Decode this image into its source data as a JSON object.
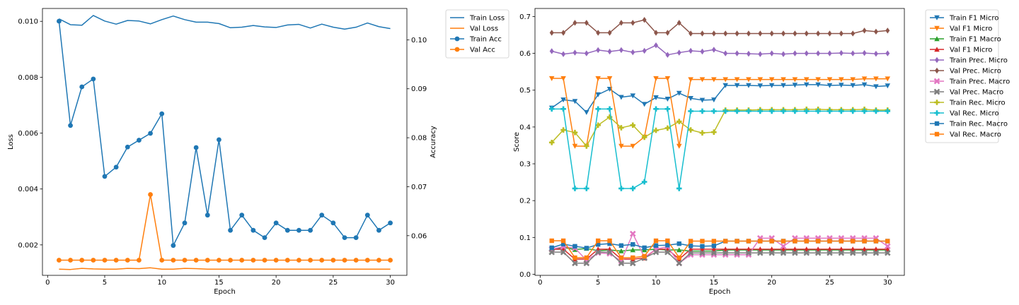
{
  "chart_data": [
    {
      "type": "line",
      "title": "",
      "xlabel": "Epoch",
      "ylabel": "Loss",
      "y2label": "Accuracy",
      "xlim": [
        -0.45,
        31.45
      ],
      "ylim": [
        0.00091,
        0.01046
      ],
      "y2lim": [
        0.0519,
        0.1064
      ],
      "xticks": [
        0,
        5,
        10,
        15,
        20,
        25,
        30
      ],
      "yticks": [
        0.002,
        0.004,
        0.006,
        0.008,
        0.01
      ],
      "ytick_labels": [
        "0.002",
        "0.004",
        "0.006",
        "0.008",
        "0.010"
      ],
      "y2ticks": [
        0.06,
        0.07,
        0.08,
        0.09,
        0.1
      ],
      "y2tick_labels": [
        "0.06",
        "0.07",
        "0.08",
        "0.09",
        "0.10"
      ],
      "legend_position": "upper-right-outside",
      "x": [
        1,
        2,
        3,
        4,
        5,
        6,
        7,
        8,
        9,
        10,
        11,
        12,
        13,
        14,
        15,
        16,
        17,
        18,
        19,
        20,
        21,
        22,
        23,
        24,
        25,
        26,
        27,
        28,
        29,
        30
      ],
      "series": [
        {
          "name": "Train Loss",
          "axis": "left",
          "color": "#1f77b4",
          "marker": "none",
          "values": [
            0.01009,
            0.00988,
            0.00986,
            0.01021,
            0.01001,
            0.0099,
            0.01003,
            0.01001,
            0.00991,
            0.01006,
            0.01019,
            0.01006,
            0.00997,
            0.00997,
            0.00992,
            0.00977,
            0.00979,
            0.00985,
            0.0098,
            0.00978,
            0.00987,
            0.00989,
            0.00976,
            0.0099,
            0.00979,
            0.00972,
            0.00979,
            0.00994,
            0.00981,
            0.00974
          ]
        },
        {
          "name": "Val Loss",
          "axis": "left",
          "color": "#ff7f0e",
          "marker": "none",
          "values": [
            0.00113,
            0.00112,
            0.00116,
            0.00114,
            0.00113,
            0.00113,
            0.00116,
            0.00115,
            0.00118,
            0.00113,
            0.00113,
            0.00116,
            0.00115,
            0.00113,
            0.00113,
            0.00113,
            0.00113,
            0.00113,
            0.00113,
            0.00113,
            0.00113,
            0.00113,
            0.00113,
            0.00113,
            0.00113,
            0.00113,
            0.00113,
            0.00113,
            0.00113,
            0.00113
          ]
        },
        {
          "name": "Train Acc",
          "axis": "right",
          "color": "#1f77b4",
          "marker": "circle",
          "values": [
            0.1038,
            0.0825,
            0.0904,
            0.092,
            0.0721,
            0.074,
            0.0781,
            0.0795,
            0.0809,
            0.0849,
            0.058,
            0.0626,
            0.078,
            0.0642,
            0.0796,
            0.0611,
            0.0642,
            0.0611,
            0.0596,
            0.0626,
            0.0611,
            0.0611,
            0.0611,
            0.0642,
            0.0626,
            0.0596,
            0.0596,
            0.0642,
            0.0611,
            0.0626
          ]
        },
        {
          "name": "Val Acc",
          "axis": "right",
          "color": "#ff7f0e",
          "marker": "circle",
          "values": [
            0.055,
            0.055,
            0.055,
            0.055,
            0.055,
            0.055,
            0.055,
            0.055,
            0.0684,
            0.055,
            0.055,
            0.055,
            0.055,
            0.055,
            0.055,
            0.055,
            0.055,
            0.055,
            0.055,
            0.055,
            0.055,
            0.055,
            0.055,
            0.055,
            0.055,
            0.055,
            0.055,
            0.055,
            0.055,
            0.055
          ]
        }
      ]
    },
    {
      "type": "line",
      "title": "",
      "xlabel": "Epoch",
      "ylabel": "Score",
      "xlim": [
        -0.45,
        31.45
      ],
      "ylim": [
        -0.003,
        0.722
      ],
      "xticks": [
        0,
        5,
        10,
        15,
        20,
        25,
        30
      ],
      "yticks": [
        0.0,
        0.1,
        0.2,
        0.3,
        0.4,
        0.5,
        0.6,
        0.7
      ],
      "ytick_labels": [
        "0.0",
        "0.1",
        "0.2",
        "0.3",
        "0.4",
        "0.5",
        "0.6",
        "0.7"
      ],
      "legend_position": "upper-right-outside",
      "x": [
        1,
        2,
        3,
        4,
        5,
        6,
        7,
        8,
        9,
        10,
        11,
        12,
        13,
        14,
        15,
        16,
        17,
        18,
        19,
        20,
        21,
        22,
        23,
        24,
        25,
        26,
        27,
        28,
        29,
        30
      ],
      "series": [
        {
          "name": "Train F1 Micro",
          "color": "#1f77b4",
          "marker": "tri_down",
          "values": [
            0.452,
            0.474,
            0.47,
            0.44,
            0.488,
            0.503,
            0.481,
            0.485,
            0.462,
            0.48,
            0.476,
            0.492,
            0.478,
            0.473,
            0.474,
            0.513,
            0.513,
            0.513,
            0.512,
            0.513,
            0.513,
            0.514,
            0.515,
            0.515,
            0.513,
            0.514,
            0.513,
            0.515,
            0.51,
            0.512
          ]
        },
        {
          "name": "Val F1 Micro",
          "color": "#ff7f0e",
          "marker": "tri_down",
          "values": [
            0.532,
            0.532,
            0.348,
            0.348,
            0.532,
            0.532,
            0.348,
            0.348,
            0.373,
            0.532,
            0.532,
            0.348,
            0.529,
            0.529,
            0.529,
            0.529,
            0.529,
            0.529,
            0.529,
            0.529,
            0.529,
            0.529,
            0.529,
            0.529,
            0.529,
            0.529,
            0.529,
            0.531,
            0.531,
            0.531
          ]
        },
        {
          "name": "Train F1 Macro",
          "color": "#2ca02c",
          "marker": "tri_up",
          "values": [
            0.066,
            0.073,
            0.067,
            0.07,
            0.064,
            0.066,
            0.063,
            0.066,
            0.066,
            0.068,
            0.066,
            0.066,
            0.063,
            0.063,
            0.063,
            0.066,
            0.066,
            0.066,
            0.066,
            0.066,
            0.066,
            0.066,
            0.066,
            0.066,
            0.066,
            0.066,
            0.066,
            0.066,
            0.066,
            0.066
          ]
        },
        {
          "name": "Val F1 Micro",
          "color": "#d62728",
          "marker": "tri_up",
          "values": [
            0.068,
            0.068,
            0.041,
            0.041,
            0.068,
            0.068,
            0.041,
            0.041,
            0.044,
            0.068,
            0.068,
            0.041,
            0.068,
            0.068,
            0.068,
            0.068,
            0.068,
            0.068,
            0.068,
            0.068,
            0.068,
            0.068,
            0.068,
            0.068,
            0.068,
            0.068,
            0.068,
            0.068,
            0.068,
            0.068
          ]
        },
        {
          "name": "Train Prec. Micro",
          "color": "#9467bd",
          "marker": "diamond",
          "values": [
            0.606,
            0.598,
            0.602,
            0.6,
            0.609,
            0.605,
            0.609,
            0.603,
            0.607,
            0.622,
            0.596,
            0.602,
            0.607,
            0.605,
            0.61,
            0.6,
            0.6,
            0.599,
            0.598,
            0.6,
            0.598,
            0.6,
            0.6,
            0.6,
            0.6,
            0.601,
            0.6,
            0.601,
            0.599,
            0.6
          ]
        },
        {
          "name": "Val Prec. Micro",
          "color": "#8c564b",
          "marker": "diamond",
          "values": [
            0.656,
            0.656,
            0.683,
            0.683,
            0.656,
            0.656,
            0.683,
            0.683,
            0.691,
            0.656,
            0.656,
            0.683,
            0.654,
            0.654,
            0.654,
            0.654,
            0.654,
            0.654,
            0.654,
            0.654,
            0.654,
            0.654,
            0.654,
            0.654,
            0.654,
            0.654,
            0.654,
            0.662,
            0.659,
            0.662
          ]
        },
        {
          "name": "Train Prec. Macro",
          "color": "#e377c2",
          "marker": "x",
          "values": [
            0.068,
            0.075,
            0.071,
            0.038,
            0.058,
            0.056,
            0.036,
            0.11,
            0.046,
            0.068,
            0.075,
            0.03,
            0.053,
            0.053,
            0.053,
            0.053,
            0.053,
            0.053,
            0.098,
            0.098,
            0.076,
            0.098,
            0.098,
            0.098,
            0.098,
            0.098,
            0.098,
            0.098,
            0.098,
            0.076
          ]
        },
        {
          "name": "Val Prec. Macro",
          "color": "#7f7f7f",
          "marker": "x",
          "values": [
            0.06,
            0.06,
            0.03,
            0.03,
            0.06,
            0.06,
            0.03,
            0.03,
            0.044,
            0.06,
            0.06,
            0.03,
            0.058,
            0.058,
            0.058,
            0.058,
            0.058,
            0.058,
            0.058,
            0.058,
            0.058,
            0.058,
            0.058,
            0.058,
            0.058,
            0.058,
            0.058,
            0.058,
            0.058,
            0.058
          ]
        },
        {
          "name": "Train Rec. Micro",
          "color": "#bcbd22",
          "marker": "plus",
          "values": [
            0.358,
            0.392,
            0.385,
            0.348,
            0.405,
            0.427,
            0.398,
            0.405,
            0.372,
            0.391,
            0.397,
            0.415,
            0.392,
            0.384,
            0.386,
            0.446,
            0.446,
            0.446,
            0.447,
            0.447,
            0.447,
            0.447,
            0.448,
            0.448,
            0.447,
            0.447,
            0.447,
            0.448,
            0.446,
            0.446
          ]
        },
        {
          "name": "Val Rec. Micro",
          "color": "#17becf",
          "marker": "plus",
          "values": [
            0.449,
            0.449,
            0.233,
            0.233,
            0.449,
            0.449,
            0.233,
            0.233,
            0.251,
            0.449,
            0.449,
            0.233,
            0.443,
            0.443,
            0.443,
            0.443,
            0.443,
            0.443,
            0.443,
            0.443,
            0.443,
            0.443,
            0.443,
            0.443,
            0.443,
            0.443,
            0.443,
            0.443,
            0.443,
            0.443
          ]
        },
        {
          "name": "Train Rec. Macro",
          "color": "#1f77b4",
          "marker": "square",
          "values": [
            0.072,
            0.082,
            0.076,
            0.071,
            0.081,
            0.083,
            0.078,
            0.081,
            0.072,
            0.078,
            0.079,
            0.083,
            0.077,
            0.076,
            0.077,
            0.09,
            0.09,
            0.09,
            0.09,
            0.09,
            0.09,
            0.09,
            0.09,
            0.09,
            0.09,
            0.09,
            0.09,
            0.09,
            0.09,
            0.09
          ]
        },
        {
          "name": "Val Rec. Macro",
          "color": "#ff7f0e",
          "marker": "square",
          "values": [
            0.091,
            0.091,
            0.045,
            0.045,
            0.091,
            0.091,
            0.045,
            0.045,
            0.049,
            0.091,
            0.091,
            0.045,
            0.09,
            0.09,
            0.09,
            0.09,
            0.09,
            0.09,
            0.09,
            0.09,
            0.09,
            0.09,
            0.09,
            0.09,
            0.09,
            0.09,
            0.09,
            0.09,
            0.09,
            0.09
          ]
        }
      ]
    }
  ]
}
